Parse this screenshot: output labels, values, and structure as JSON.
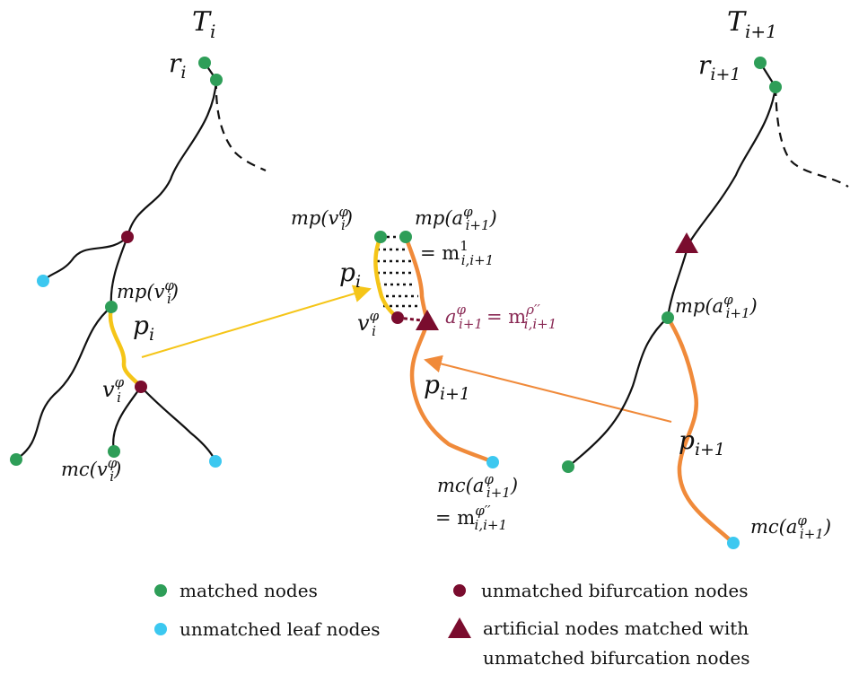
{
  "colors": {
    "matched": "#2e9e58",
    "unmatched_leaf": "#3cc8f0",
    "unmatched_bifurcation": "#7a0c2e",
    "artificial": "#7a0c2e",
    "path_i": "#f5c518",
    "path_i1": "#f08a3a",
    "edge": "#111111",
    "pink_label": "#8a2a55"
  },
  "left_tree": {
    "title_base": "T",
    "title_sub": "i",
    "root_base": "r",
    "root_sub": "i",
    "mp_label": "mp(v",
    "mp_sup": "φ",
    "mp_sub": "i",
    "mp_close": ")",
    "p_base": "p",
    "p_sub": "i",
    "v_base": "v",
    "v_sup": "φ",
    "v_sub": "i",
    "mc_label": "mc(v",
    "mc_sup": "φ",
    "mc_sub": "i",
    "mc_close": ")"
  },
  "middle": {
    "mpv_label": "mp(v",
    "mpv_sup": "φ",
    "mpv_sub": "i",
    "mpv_close": ")",
    "mpa_label": "mp(a",
    "mpa_sup": "φ",
    "mpa_sub": "i+1",
    "mpa_close": ")",
    "m1_eq": "= m",
    "m1_sup": "1",
    "m1_sub": "i,i+1",
    "p_base": "p",
    "p_sub": "i",
    "v_base": "v",
    "v_sup": "φ",
    "v_sub": "i",
    "a_base": "a",
    "a_sup": "φ",
    "a_sub": "i+1",
    "a_eq": "= m",
    "a_eq_sup": "ρ′′",
    "a_eq_sub": "i,i+1",
    "p1_base": "p",
    "p1_sub": "i+1",
    "mc_label": "mc(a",
    "mc_sup": "φ",
    "mc_sub": "i+1",
    "mc_close": ")",
    "mc_eq": "= m",
    "mc_eq_sup": "φ′′",
    "mc_eq_sub": "i,i+1"
  },
  "right_tree": {
    "title_base": "T",
    "title_sub": "i+1",
    "root_base": "r",
    "root_sub": "i+1",
    "mp_label": "mp(a",
    "mp_sup": "φ",
    "mp_sub": "i+1",
    "mp_close": ")",
    "p_base": "p",
    "p_sub": "i+1",
    "mc_label": "mc(a",
    "mc_sup": "φ",
    "mc_sub": "i+1",
    "mc_close": ")"
  },
  "legend": {
    "matched": "matched nodes",
    "unmatched_bifurcation": "unmatched bifurcation nodes",
    "unmatched_leaf": "unmatched leaf nodes",
    "artificial_line1": "artificial nodes matched with",
    "artificial_line2": "unmatched bifurcation nodes"
  }
}
